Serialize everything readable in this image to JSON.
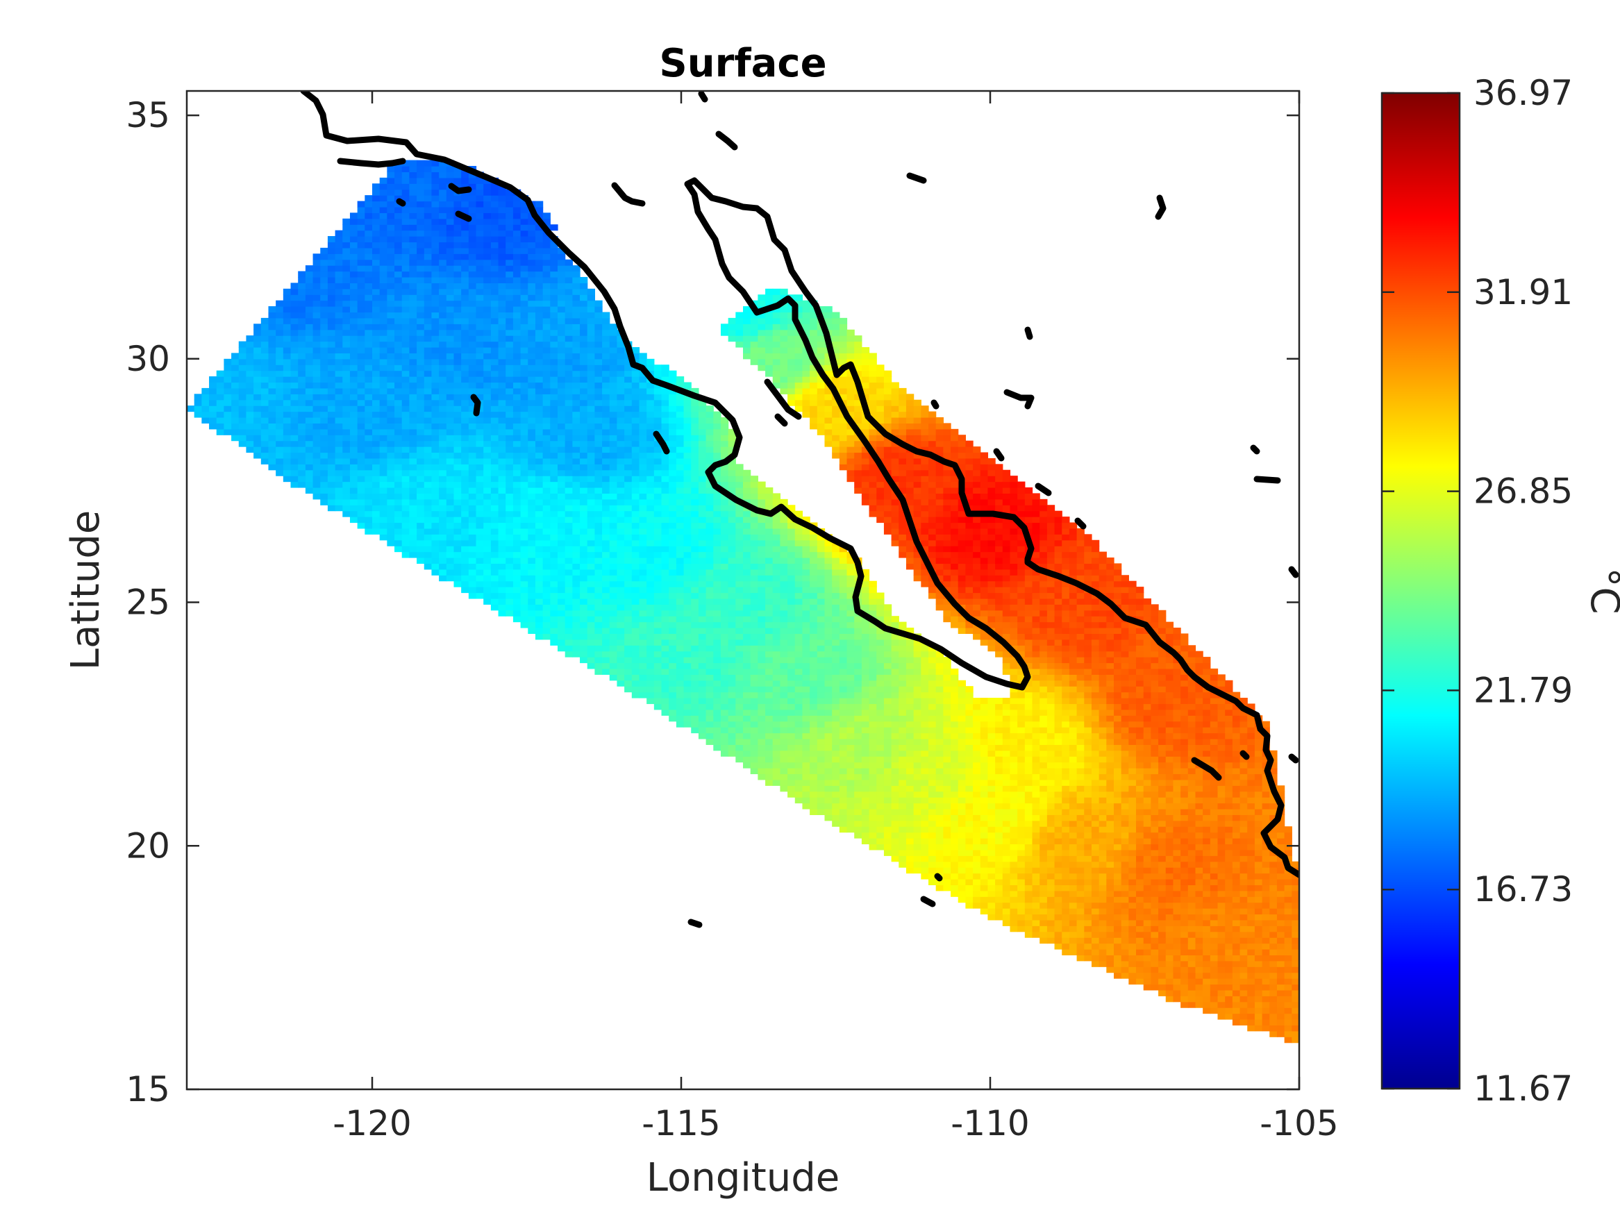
{
  "chart_data": {
    "type": "heatmap",
    "title": "Surface",
    "xlabel": "Longitude",
    "ylabel": "Latitude",
    "xlim": [
      -123,
      -105
    ],
    "ylim": [
      15,
      35.5
    ],
    "x_ticks": [
      -120,
      -115,
      -110,
      -105
    ],
    "y_ticks": [
      15,
      20,
      25,
      30,
      35
    ],
    "x_tick_labels": [
      "-120",
      "-115",
      "-110",
      "-105"
    ],
    "y_tick_labels": [
      "15",
      "20",
      "25",
      "30",
      "35"
    ],
    "grid": false,
    "colormap": "jet",
    "colorbar": {
      "label": "°C",
      "min": 11.67,
      "max": 36.97,
      "ticks": [
        11.67,
        16.73,
        21.79,
        26.85,
        31.91,
        36.97
      ],
      "tick_labels": [
        "11.67",
        "16.73",
        "21.79",
        "26.85",
        "31.91",
        "36.97"
      ]
    },
    "field_estimate": [
      {
        "lon": -122.5,
        "lat": 29.0,
        "value": 19.5
      },
      {
        "lon": -121.0,
        "lat": 32.0,
        "value": 17.8
      },
      {
        "lon": -119.5,
        "lat": 33.5,
        "value": 17.5
      },
      {
        "lon": -118.0,
        "lat": 33.0,
        "value": 17.0
      },
      {
        "lon": -120.0,
        "lat": 29.0,
        "value": 19.0
      },
      {
        "lon": -118.5,
        "lat": 30.5,
        "value": 18.5
      },
      {
        "lon": -117.0,
        "lat": 30.0,
        "value": 18.8
      },
      {
        "lon": -116.5,
        "lat": 28.5,
        "value": 19.2
      },
      {
        "lon": -119.0,
        "lat": 27.0,
        "value": 20.5
      },
      {
        "lon": -117.0,
        "lat": 26.5,
        "value": 21.0
      },
      {
        "lon": -115.5,
        "lat": 26.0,
        "value": 21.2
      },
      {
        "lon": -114.0,
        "lat": 25.0,
        "value": 22.5
      },
      {
        "lon": -115.0,
        "lat": 24.0,
        "value": 22.5
      },
      {
        "lon": -113.0,
        "lat": 23.5,
        "value": 23.5
      },
      {
        "lon": -112.0,
        "lat": 22.0,
        "value": 25.5
      },
      {
        "lon": -111.0,
        "lat": 21.5,
        "value": 26.5
      },
      {
        "lon": -110.0,
        "lat": 20.5,
        "value": 27.5
      },
      {
        "lon": -109.5,
        "lat": 22.0,
        "value": 27.8
      },
      {
        "lon": -108.5,
        "lat": 20.0,
        "value": 29.5
      },
      {
        "lon": -107.0,
        "lat": 19.5,
        "value": 31.0
      },
      {
        "lon": -106.0,
        "lat": 18.0,
        "value": 30.5
      },
      {
        "lon": -107.0,
        "lat": 23.0,
        "value": 31.5
      },
      {
        "lon": -108.5,
        "lat": 25.0,
        "value": 32.0
      },
      {
        "lon": -110.0,
        "lat": 26.5,
        "value": 33.5
      },
      {
        "lon": -111.5,
        "lat": 27.5,
        "value": 32.5
      },
      {
        "lon": -112.5,
        "lat": 29.0,
        "value": 28.5
      },
      {
        "lon": -113.5,
        "lat": 30.0,
        "value": 24.0
      },
      {
        "lon": -114.0,
        "lat": 31.0,
        "value": 21.5
      }
    ]
  }
}
